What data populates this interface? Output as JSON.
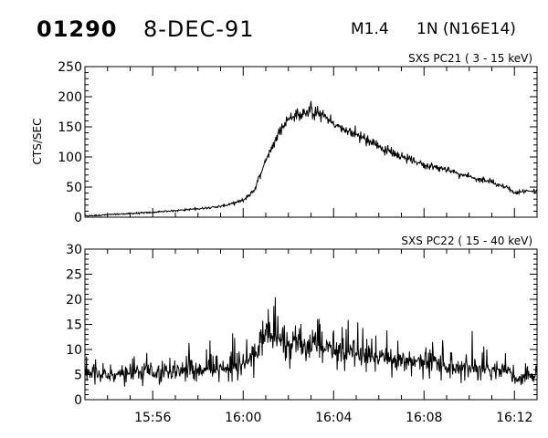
{
  "header": {
    "event_id": "01290",
    "date": "8-DEC-91",
    "flare_class": "M1.4",
    "flare_region": "1N (N16E14)"
  },
  "chart_data": [
    {
      "type": "line",
      "title": "SXS PC21  (  3 - 15 keV)",
      "ylabel": "CTS/SEC",
      "xlabel": "",
      "xlim": [
        "15:53",
        "16:13"
      ],
      "ylim": [
        0,
        250
      ],
      "yticks": [
        0,
        50,
        100,
        150,
        200,
        250
      ],
      "xticks": [
        "15:56",
        "16:00",
        "16:04",
        "16:08",
        "16:12"
      ],
      "xtick_labels_shown": false,
      "series": [
        {
          "x": [
            "15:53",
            "15:54",
            "15:55",
            "15:56",
            "15:57",
            "15:58",
            "15:59",
            "15:59:30",
            "16:00",
            "16:00:30",
            "16:01",
            "16:01:30",
            "16:02",
            "16:02:30",
            "16:03",
            "16:03:30",
            "16:04",
            "16:04:30",
            "16:05",
            "16:06",
            "16:07",
            "16:08",
            "16:09",
            "16:10",
            "16:11",
            "16:11:45",
            "16:12",
            "16:12:30",
            "16:13"
          ],
          "values": [
            2,
            4,
            6,
            8,
            11,
            14,
            18,
            22,
            28,
            45,
            95,
            135,
            165,
            170,
            175,
            172,
            155,
            145,
            138,
            118,
            100,
            88,
            78,
            68,
            58,
            48,
            40,
            44,
            42
          ]
        }
      ]
    },
    {
      "type": "line",
      "title": "SXS PC22  ( 15 - 40 keV)",
      "ylabel": "",
      "xlabel": "",
      "xlim": [
        "15:53",
        "16:13"
      ],
      "ylim": [
        0,
        30
      ],
      "yticks": [
        0,
        5,
        10,
        15,
        20,
        25,
        30
      ],
      "xticks": [
        "15:56",
        "16:00",
        "16:04",
        "16:08",
        "16:12"
      ],
      "series": [
        {
          "x": [
            "15:53",
            "15:54",
            "15:55",
            "15:56",
            "15:57",
            "15:58",
            "15:59",
            "16:00",
            "16:00:30",
            "16:01",
            "16:01:30",
            "16:02",
            "16:02:30",
            "16:03",
            "16:03:30",
            "16:04",
            "16:05",
            "16:06",
            "16:07",
            "16:08",
            "16:09",
            "16:10",
            "16:11",
            "16:11:45",
            "16:12",
            "16:12:30",
            "16:13"
          ],
          "values": [
            5,
            5,
            5,
            5.5,
            5.5,
            6,
            6,
            7,
            9,
            14,
            12,
            11,
            10.5,
            11,
            10,
            10,
            9,
            8.5,
            8,
            7.5,
            7,
            6.5,
            6,
            6,
            4,
            5,
            4.5
          ]
        }
      ]
    }
  ]
}
